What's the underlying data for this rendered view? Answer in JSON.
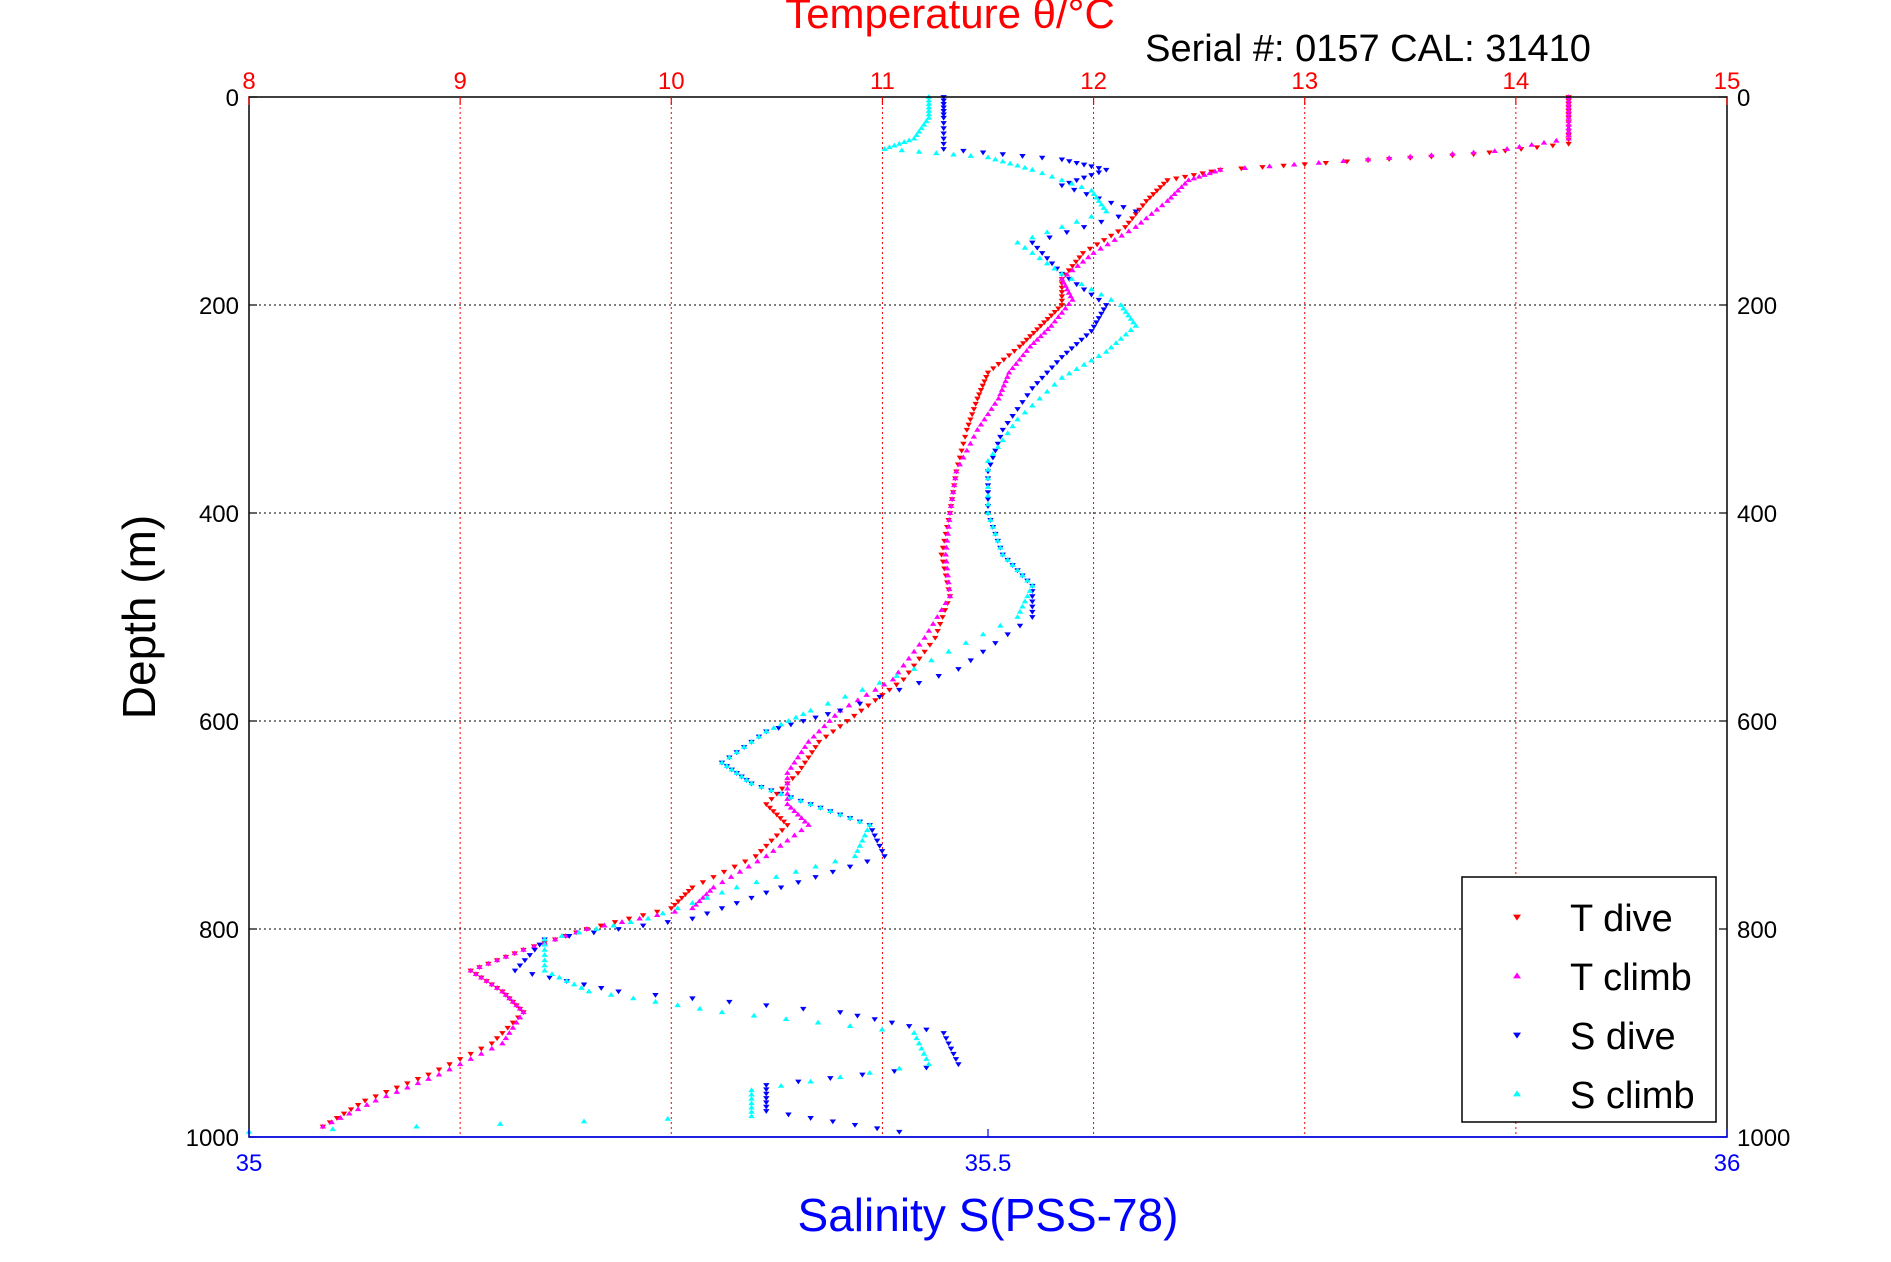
{
  "chart_data": {
    "type": "scatter",
    "title": "Temperature θ/°C",
    "subtitle": "Serial #: 0157  CAL: 31410",
    "ylabel": "Depth (m)",
    "xlabel": "Salinity S(PSS-78)",
    "ylim": [
      0,
      1000
    ],
    "y_reversed": true,
    "temperature_axis": {
      "range": [
        8,
        15
      ],
      "ticks": [
        "8",
        "9",
        "10",
        "11",
        "12",
        "13",
        "14",
        "15"
      ],
      "position": "top"
    },
    "salinity_axis": {
      "range": [
        35,
        36
      ],
      "ticks": [
        "35",
        "35.5",
        "36"
      ],
      "position": "bottom"
    },
    "depth_ticks": [
      "0",
      "200",
      "400",
      "600",
      "800",
      "1000"
    ],
    "grid": true,
    "legend": {
      "placement": "bottom-right",
      "entries": [
        "T dive",
        "T climb",
        "S dive",
        "S climb"
      ]
    },
    "colors": {
      "temperature": "#ff0000",
      "salinity": "#0000ff",
      "t_dive": "#ff0000",
      "t_climb": "#ff00ff",
      "s_dive": "#0000ff",
      "s_climb": "#00ffff",
      "grid_temperature": "#ff0000",
      "grid_depth": "#000000"
    },
    "series": [
      {
        "name": "T dive",
        "axis": "temperature",
        "marker": "triangle-down",
        "color": "#ff0000",
        "points": [
          [
            14.25,
            0
          ],
          [
            14.25,
            20
          ],
          [
            14.25,
            45
          ],
          [
            13.8,
            55
          ],
          [
            13.2,
            62
          ],
          [
            12.6,
            70
          ],
          [
            12.35,
            80
          ],
          [
            12.25,
            100
          ],
          [
            12.15,
            125
          ],
          [
            11.95,
            150
          ],
          [
            11.85,
            175
          ],
          [
            11.85,
            200
          ],
          [
            11.75,
            220
          ],
          [
            11.65,
            240
          ],
          [
            11.5,
            265
          ],
          [
            11.45,
            290
          ],
          [
            11.4,
            320
          ],
          [
            11.35,
            360
          ],
          [
            11.32,
            400
          ],
          [
            11.28,
            440
          ],
          [
            11.32,
            480
          ],
          [
            11.25,
            520
          ],
          [
            11.1,
            560
          ],
          [
            10.9,
            590
          ],
          [
            10.7,
            620
          ],
          [
            10.6,
            650
          ],
          [
            10.45,
            680
          ],
          [
            10.55,
            700
          ],
          [
            10.4,
            730
          ],
          [
            10.1,
            760
          ],
          [
            10.0,
            780
          ],
          [
            9.6,
            800
          ],
          [
            9.3,
            820
          ],
          [
            9.05,
            840
          ],
          [
            9.2,
            860
          ],
          [
            9.3,
            880
          ],
          [
            9.15,
            910
          ],
          [
            8.85,
            940
          ],
          [
            8.55,
            965
          ],
          [
            8.35,
            990
          ]
        ]
      },
      {
        "name": "T climb",
        "axis": "temperature",
        "marker": "triangle-up",
        "color": "#ff00ff",
        "points": [
          [
            14.25,
            0
          ],
          [
            14.25,
            20
          ],
          [
            14.25,
            40
          ],
          [
            13.9,
            52
          ],
          [
            13.3,
            60
          ],
          [
            12.6,
            70
          ],
          [
            12.45,
            80
          ],
          [
            12.35,
            100
          ],
          [
            12.2,
            125
          ],
          [
            12.0,
            150
          ],
          [
            11.85,
            175
          ],
          [
            11.9,
            195
          ],
          [
            11.8,
            220
          ],
          [
            11.7,
            240
          ],
          [
            11.6,
            265
          ],
          [
            11.55,
            290
          ],
          [
            11.45,
            320
          ],
          [
            11.35,
            360
          ],
          [
            11.32,
            400
          ],
          [
            11.3,
            440
          ],
          [
            11.32,
            480
          ],
          [
            11.2,
            520
          ],
          [
            11.05,
            560
          ],
          [
            10.8,
            590
          ],
          [
            10.65,
            620
          ],
          [
            10.55,
            650
          ],
          [
            10.55,
            680
          ],
          [
            10.65,
            700
          ],
          [
            10.45,
            730
          ],
          [
            10.2,
            760
          ],
          [
            10.1,
            780
          ],
          [
            9.6,
            800
          ],
          [
            9.3,
            820
          ],
          [
            9.05,
            840
          ],
          [
            9.2,
            860
          ],
          [
            9.3,
            880
          ],
          [
            9.2,
            910
          ],
          [
            8.9,
            940
          ],
          [
            8.6,
            965
          ],
          [
            8.35,
            990
          ]
        ]
      },
      {
        "name": "S dive",
        "axis": "salinity",
        "marker": "triangle-down",
        "color": "#0000ff",
        "points": [
          [
            35.47,
            0
          ],
          [
            35.47,
            20
          ],
          [
            35.47,
            50
          ],
          [
            35.55,
            60
          ],
          [
            35.58,
            70
          ],
          [
            35.55,
            85
          ],
          [
            35.6,
            110
          ],
          [
            35.53,
            140
          ],
          [
            35.55,
            170
          ],
          [
            35.58,
            200
          ],
          [
            35.57,
            225
          ],
          [
            35.55,
            250
          ],
          [
            35.53,
            280
          ],
          [
            35.51,
            320
          ],
          [
            35.5,
            360
          ],
          [
            35.5,
            400
          ],
          [
            35.51,
            440
          ],
          [
            35.53,
            470
          ],
          [
            35.53,
            500
          ],
          [
            35.48,
            550
          ],
          [
            35.4,
            590
          ],
          [
            35.35,
            610
          ],
          [
            35.32,
            640
          ],
          [
            35.34,
            660
          ],
          [
            35.38,
            680
          ],
          [
            35.42,
            700
          ],
          [
            35.43,
            730
          ],
          [
            35.36,
            760
          ],
          [
            35.3,
            790
          ],
          [
            35.2,
            810
          ],
          [
            35.18,
            840
          ],
          [
            35.25,
            860
          ],
          [
            35.4,
            880
          ],
          [
            35.47,
            900
          ],
          [
            35.48,
            930
          ],
          [
            35.35,
            950
          ],
          [
            35.35,
            975
          ],
          [
            35.44,
            995
          ]
        ]
      },
      {
        "name": "S climb",
        "axis": "salinity",
        "marker": "triangle-up",
        "color": "#00ffff",
        "points": [
          [
            35.46,
            0
          ],
          [
            35.46,
            20
          ],
          [
            35.45,
            40
          ],
          [
            35.43,
            50
          ],
          [
            35.5,
            58
          ],
          [
            35.53,
            70
          ],
          [
            35.57,
            90
          ],
          [
            35.58,
            110
          ],
          [
            35.52,
            140
          ],
          [
            35.55,
            170
          ],
          [
            35.59,
            200
          ],
          [
            35.6,
            220
          ],
          [
            35.58,
            245
          ],
          [
            35.55,
            270
          ],
          [
            35.52,
            310
          ],
          [
            35.5,
            350
          ],
          [
            35.5,
            400
          ],
          [
            35.51,
            440
          ],
          [
            35.53,
            470
          ],
          [
            35.52,
            500
          ],
          [
            35.45,
            550
          ],
          [
            35.38,
            590
          ],
          [
            35.35,
            610
          ],
          [
            35.32,
            640
          ],
          [
            35.34,
            660
          ],
          [
            35.38,
            680
          ],
          [
            35.42,
            700
          ],
          [
            35.41,
            730
          ],
          [
            35.33,
            760
          ],
          [
            35.27,
            790
          ],
          [
            35.2,
            810
          ],
          [
            35.2,
            840
          ],
          [
            35.23,
            860
          ],
          [
            35.32,
            880
          ],
          [
            35.45,
            900
          ],
          [
            35.46,
            930
          ],
          [
            35.34,
            955
          ],
          [
            35.34,
            980
          ],
          [
            35.0,
            995
          ]
        ]
      }
    ]
  }
}
